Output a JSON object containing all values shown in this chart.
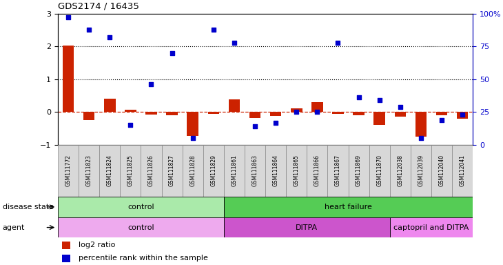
{
  "title": "GDS2174 / 16435",
  "samples": [
    "GSM111772",
    "GSM111823",
    "GSM111824",
    "GSM111825",
    "GSM111826",
    "GSM111827",
    "GSM111828",
    "GSM111829",
    "GSM111861",
    "GSM111863",
    "GSM111864",
    "GSM111865",
    "GSM111866",
    "GSM111867",
    "GSM111869",
    "GSM111870",
    "GSM112038",
    "GSM112039",
    "GSM112040",
    "GSM112041"
  ],
  "log2_ratio": [
    2.03,
    -0.25,
    0.4,
    0.08,
    -0.08,
    -0.1,
    -0.72,
    -0.05,
    0.38,
    -0.18,
    -0.12,
    0.12,
    0.3,
    -0.05,
    -0.1,
    -0.4,
    -0.15,
    -0.75,
    -0.1,
    -0.2
  ],
  "percentile": [
    97,
    88,
    82,
    15,
    46,
    70,
    5,
    88,
    78,
    14,
    17,
    25,
    25,
    78,
    36,
    34,
    29,
    5,
    19,
    23
  ],
  "bar_color": "#cc2200",
  "dot_color": "#0000cc",
  "hline_color": "#cc2200",
  "dotted_line_color": "#000000",
  "ylim_left": [
    -1,
    3
  ],
  "ylim_right": [
    0,
    100
  ],
  "yticks_left": [
    -1,
    0,
    1,
    2,
    3
  ],
  "yticks_right": [
    0,
    25,
    50,
    75,
    100
  ],
  "ytick_labels_right": [
    "0",
    "25",
    "50",
    "75",
    "100%"
  ],
  "disease_state_groups": [
    {
      "label": "control",
      "start": 0,
      "end": 8,
      "color": "#aaeaaa"
    },
    {
      "label": "heart failure",
      "start": 8,
      "end": 20,
      "color": "#55cc55"
    }
  ],
  "agent_groups": [
    {
      "label": "control",
      "start": 0,
      "end": 8,
      "color": "#eeaaee"
    },
    {
      "label": "DITPA",
      "start": 8,
      "end": 16,
      "color": "#cc55cc"
    },
    {
      "label": "captopril and DITPA",
      "start": 16,
      "end": 20,
      "color": "#ee88ee"
    }
  ],
  "legend_bar_label": "log2 ratio",
  "legend_dot_label": "percentile rank within the sample",
  "disease_state_label": "disease state",
  "agent_label": "agent"
}
